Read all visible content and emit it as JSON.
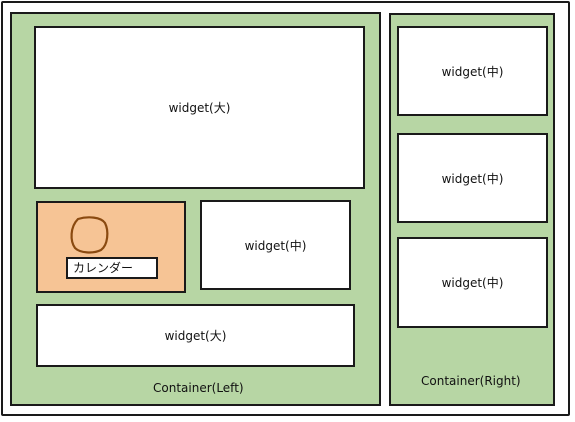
{
  "left_container": {
    "label": "Container(Left)",
    "widgets": {
      "large_top": "widget(大)",
      "medium": "widget(中)",
      "large_bottom": "widget(大)"
    },
    "calendar": {
      "label": "カレンダー",
      "icon": "calendar-icon",
      "fill_color": "#f6c495"
    }
  },
  "right_container": {
    "label": "Container(Right)",
    "widgets": [
      "widget(中)",
      "widget(中)",
      "widget(中)"
    ]
  },
  "colors": {
    "container_fill": "#b7d6a4",
    "widget_fill": "#ffffff",
    "icon_stroke": "#8a4a10"
  }
}
